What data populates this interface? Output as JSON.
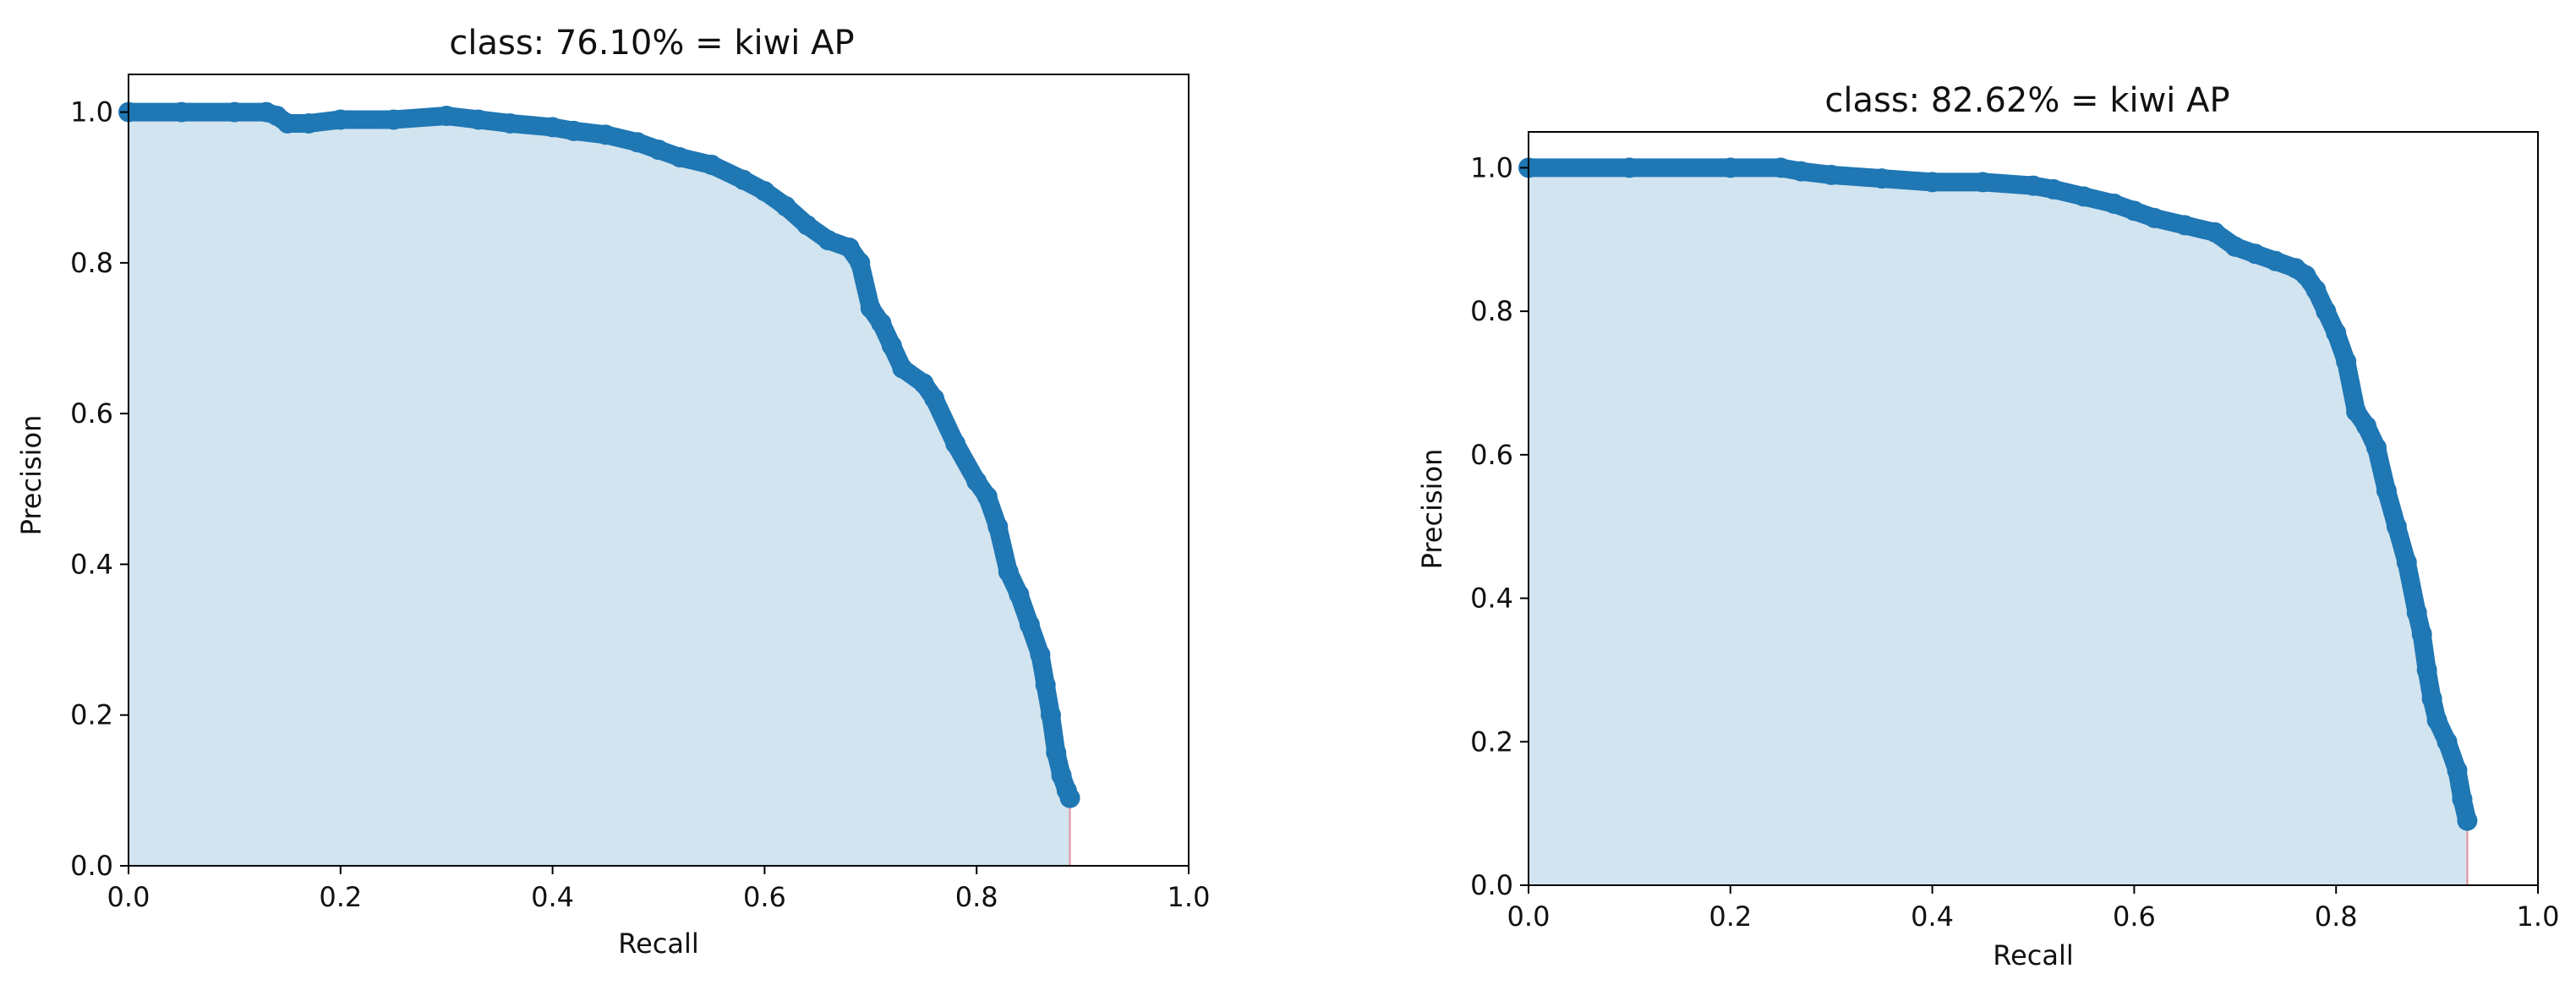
{
  "chart_data": [
    {
      "type": "area",
      "title": "class: 76.10% = kiwi AP",
      "xlabel": "Recall",
      "ylabel": "Precision",
      "xlim": [
        0,
        1
      ],
      "ylim": [
        0,
        1.05
      ],
      "xticks": [
        "0.0",
        "0.2",
        "0.4",
        "0.6",
        "0.8",
        "1.0"
      ],
      "yticks": [
        "0.0",
        "0.2",
        "0.4",
        "0.6",
        "0.8",
        "1.0"
      ],
      "grid": false,
      "series": [
        {
          "x": [
            0.0,
            0.05,
            0.1,
            0.13,
            0.14,
            0.15,
            0.17,
            0.2,
            0.25,
            0.3,
            0.33,
            0.36,
            0.4,
            0.42,
            0.45,
            0.48,
            0.5,
            0.52,
            0.55,
            0.58,
            0.6,
            0.62,
            0.64,
            0.66,
            0.68,
            0.69,
            0.7,
            0.71,
            0.72,
            0.73,
            0.75,
            0.76,
            0.78,
            0.8,
            0.81,
            0.82,
            0.83,
            0.84,
            0.85,
            0.86,
            0.865,
            0.87,
            0.875,
            0.88,
            0.885,
            0.888
          ],
          "y": [
            1.0,
            1.0,
            1.0,
            1.0,
            0.995,
            0.985,
            0.985,
            0.99,
            0.99,
            0.995,
            0.99,
            0.985,
            0.98,
            0.975,
            0.97,
            0.96,
            0.95,
            0.94,
            0.93,
            0.91,
            0.895,
            0.875,
            0.85,
            0.83,
            0.82,
            0.8,
            0.74,
            0.72,
            0.69,
            0.66,
            0.64,
            0.62,
            0.56,
            0.51,
            0.49,
            0.45,
            0.39,
            0.36,
            0.32,
            0.28,
            0.24,
            0.2,
            0.15,
            0.12,
            0.1,
            0.09
          ],
          "color": "#1f77b4"
        }
      ],
      "fill_color": "#1f77b4",
      "end_line_color": "#e0909a"
    },
    {
      "type": "area",
      "title": "class: 82.62% = kiwi AP",
      "xlabel": "Recall",
      "ylabel": "Precision",
      "xlim": [
        0,
        1
      ],
      "ylim": [
        0,
        1.05
      ],
      "xticks": [
        "0.0",
        "0.2",
        "0.4",
        "0.6",
        "0.8",
        "1.0"
      ],
      "yticks": [
        "0.0",
        "0.2",
        "0.4",
        "0.6",
        "0.8",
        "1.0"
      ],
      "grid": false,
      "series": [
        {
          "x": [
            0.0,
            0.1,
            0.2,
            0.25,
            0.27,
            0.3,
            0.35,
            0.4,
            0.45,
            0.5,
            0.52,
            0.55,
            0.58,
            0.6,
            0.62,
            0.65,
            0.68,
            0.7,
            0.72,
            0.74,
            0.76,
            0.77,
            0.78,
            0.79,
            0.8,
            0.81,
            0.82,
            0.83,
            0.84,
            0.85,
            0.86,
            0.87,
            0.88,
            0.885,
            0.89,
            0.895,
            0.9,
            0.91,
            0.92,
            0.925,
            0.93
          ],
          "y": [
            1.0,
            1.0,
            1.0,
            1.0,
            0.995,
            0.99,
            0.985,
            0.98,
            0.98,
            0.975,
            0.97,
            0.96,
            0.95,
            0.94,
            0.93,
            0.92,
            0.91,
            0.89,
            0.88,
            0.87,
            0.86,
            0.85,
            0.83,
            0.8,
            0.77,
            0.73,
            0.66,
            0.64,
            0.61,
            0.55,
            0.5,
            0.45,
            0.38,
            0.35,
            0.3,
            0.26,
            0.23,
            0.2,
            0.16,
            0.12,
            0.09
          ],
          "color": "#1f77b4"
        }
      ],
      "fill_color": "#1f77b4",
      "end_line_color": "#e0909a"
    }
  ]
}
